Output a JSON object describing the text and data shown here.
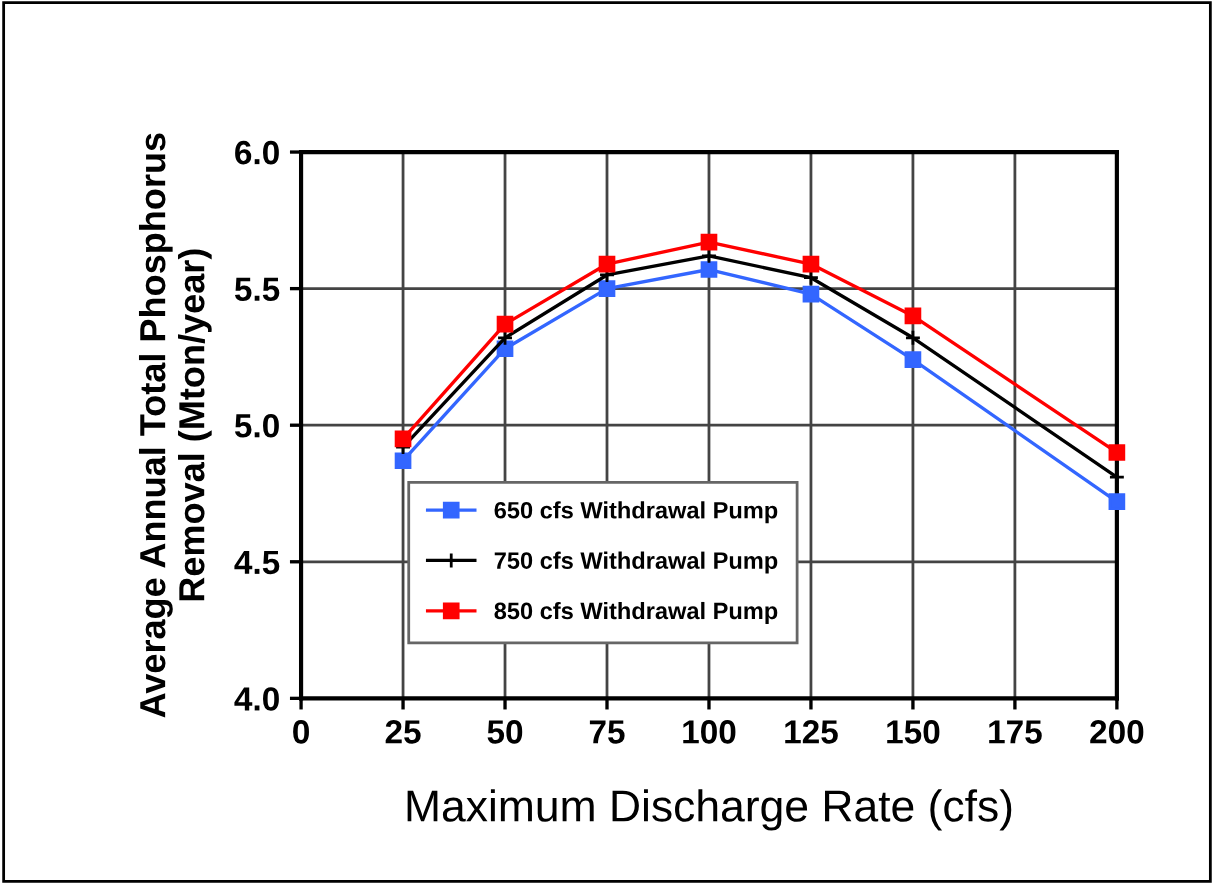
{
  "chart_data": {
    "type": "line",
    "xlabel": "Maximum Discharge Rate (cfs)",
    "ylabel": "Average Annual Total Phosphorus\nRemoval (Mton/year)",
    "x": [
      25,
      50,
      75,
      100,
      125,
      150,
      200
    ],
    "series": [
      {
        "name": "650 cfs Withdrawal Pump",
        "color": "#3366ff",
        "marker": "square",
        "values": [
          4.87,
          5.28,
          5.5,
          5.57,
          5.48,
          5.24,
          4.72
        ]
      },
      {
        "name": "750 cfs Withdrawal Pump",
        "color": "#000000",
        "marker": "cross",
        "values": [
          4.92,
          5.32,
          5.55,
          5.62,
          5.54,
          5.32,
          4.81
        ]
      },
      {
        "name": "850 cfs Withdrawal Pump",
        "color": "#ff0000",
        "marker": "square",
        "values": [
          4.95,
          5.37,
          5.59,
          5.67,
          5.59,
          5.4,
          4.9
        ]
      }
    ],
    "xlim": [
      0,
      200
    ],
    "xticks": [
      0,
      25,
      50,
      75,
      100,
      125,
      150,
      175,
      200
    ],
    "ylim": [
      4.0,
      6.0
    ],
    "yticks": [
      {
        "value": 4.0,
        "label": "4.0"
      },
      {
        "value": 4.5,
        "label": "4.5"
      },
      {
        "value": 5.0,
        "label": "5.0"
      },
      {
        "value": 5.5,
        "label": "5.5"
      },
      {
        "value": 6.0,
        "label": "6.0"
      }
    ],
    "grid": true,
    "legend": "bottom",
    "line_style": "solid"
  }
}
